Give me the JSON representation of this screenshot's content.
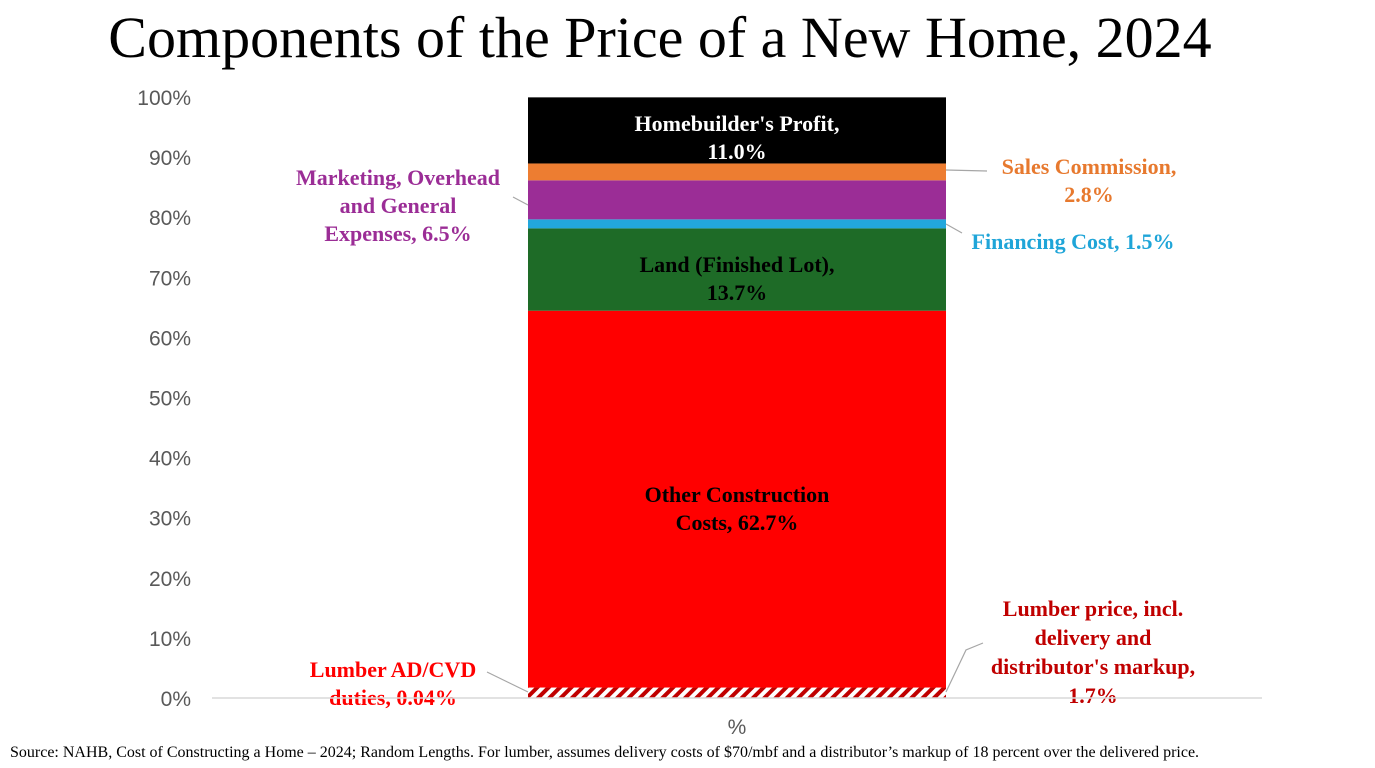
{
  "title": "Components of the Price of a New Home, 2024",
  "source": "Source: NAHB, Cost of Constructing a Home – 2024; Random Lengths.  For lumber, assumes delivery costs of $70/mbf and a distributor’s markup of 18 percent over the delivered price.",
  "chart_data": {
    "type": "bar",
    "stacked": true,
    "categories": [
      "%"
    ],
    "ylim": [
      0,
      100
    ],
    "ytick_labels": [
      "0%",
      "10%",
      "20%",
      "30%",
      "40%",
      "50%",
      "60%",
      "70%",
      "80%",
      "90%",
      "100%"
    ],
    "grid": false,
    "series": [
      {
        "key": "lumber_duties",
        "value": 0.04,
        "color": "#C00000",
        "pattern": "hatch",
        "label": [
          "Lumber AD/CVD",
          "duties, 0.04%"
        ],
        "label_color": "#FF0000"
      },
      {
        "key": "lumber_price",
        "value": 1.7,
        "color": "#C00000",
        "pattern": "hatch",
        "label": [
          "Lumber price, incl.",
          "delivery and",
          "distributor's markup,",
          "1.7%"
        ],
        "label_color": "#C00000"
      },
      {
        "key": "other_construction",
        "value": 62.7,
        "color": "#FF0000",
        "label": [
          "Other Construction",
          "Costs, 62.7%"
        ],
        "label_color": "#000000"
      },
      {
        "key": "land",
        "value": 13.7,
        "color": "#1E6B27",
        "label": [
          "Land (Finished Lot),",
          "13.7%"
        ],
        "label_color": "#000000"
      },
      {
        "key": "financing",
        "value": 1.5,
        "color": "#22A7DC",
        "label": [
          "Financing Cost, 1.5%"
        ],
        "label_color": "#1FA5D8"
      },
      {
        "key": "marketing_overhead",
        "value": 6.5,
        "color": "#9B2D96",
        "label": [
          "Marketing, Overhead",
          "and General",
          "Expenses, 6.5%"
        ],
        "label_color": "#9B2D96"
      },
      {
        "key": "sales_commission",
        "value": 2.8,
        "color": "#ED7D31",
        "label": [
          "Sales Commission,",
          "2.8%"
        ],
        "label_color": "#E7792E"
      },
      {
        "key": "homebuilder_profit",
        "value": 11.0,
        "color": "#000000",
        "label": [
          "Homebuilder's Profit,",
          "11.0%"
        ],
        "label_color": "#FFFFFF"
      }
    ]
  }
}
